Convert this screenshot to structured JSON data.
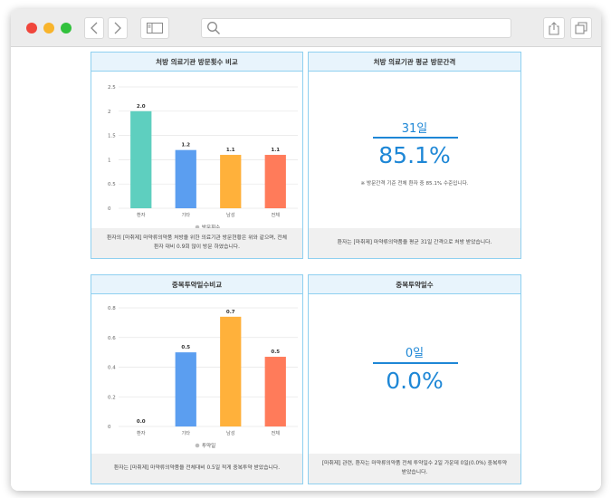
{
  "browser": {
    "url": "",
    "icons": [
      "back-icon",
      "forward-icon",
      "sidebar-icon",
      "search-icon",
      "share-icon",
      "tabs-icon"
    ]
  },
  "cards": {
    "visits": {
      "title": "처방 의료기관 방문횟수 비교",
      "legend": "방문횟수",
      "footer": "환자의 [마취제] 마약류의약품 처방을 위한 의료기관 방문현황은 위와 같으며, 전체 환자 대비 0.9회 많이 방문 하였습니다.",
      "color_legend": "#bdbdbd"
    },
    "interval": {
      "title": "처방 의료기관 평균 방문간격",
      "days": "31일",
      "percent": "85.1%",
      "note": "※ 방문간격 기준 전체 환자 중 85.1% 수준입니다.",
      "footer": "환자는 [마취제] 마약류의약품을 평균 31일 간격으로 처방 받았습니다."
    },
    "overlap_compare": {
      "title": "중복투약일수비교",
      "legend": "투약일",
      "footer": "환자는 [마취제] 마약류의약품을 전체대비 0.5일 적게 중복투약 받았습니다."
    },
    "overlap": {
      "title": "중복투약일수",
      "days": "0일",
      "percent": "0.0%",
      "footer": "[마취제] 관련, 환자는 마약류의약품 전체 투약일수 2일 가운데 0일(0.0%) 중복투약 받았습니다."
    }
  },
  "chart_data": [
    {
      "type": "bar",
      "title": "처방 의료기관 방문횟수 비교",
      "categories": [
        "환자",
        "기타",
        "남성",
        "전체"
      ],
      "series": [
        {
          "name": "방문횟수",
          "values": [
            2.0,
            1.2,
            1.1,
            1.1
          ]
        }
      ],
      "value_labels": [
        "2.0",
        "1.2",
        "1.1",
        "1.1"
      ],
      "colors": [
        "#5ecfbf",
        "#5b9ef0",
        "#ffb13b",
        "#ff7b5a"
      ],
      "ylim": [
        0,
        2.5
      ],
      "yticks": [
        "0",
        "0.5",
        "1",
        "1.5",
        "2",
        "2.5"
      ],
      "grid": true,
      "legend_position": "bottom"
    },
    {
      "type": "bar",
      "title": "중복투약일수비교",
      "categories": [
        "환자",
        "기타",
        "남성",
        "전체"
      ],
      "series": [
        {
          "name": "투약일",
          "values": [
            0.0,
            0.5,
            0.74,
            0.47
          ]
        }
      ],
      "value_labels": [
        "0.0",
        "0.5",
        "0.7",
        "0.5"
      ],
      "colors": [
        "#5ecfbf",
        "#5b9ef0",
        "#ffb13b",
        "#ff7b5a"
      ],
      "ylim": [
        0,
        0.8
      ],
      "yticks": [
        "0",
        "0.2",
        "0.4",
        "0.6",
        "0.8"
      ],
      "grid": true,
      "legend_position": "bottom"
    }
  ]
}
